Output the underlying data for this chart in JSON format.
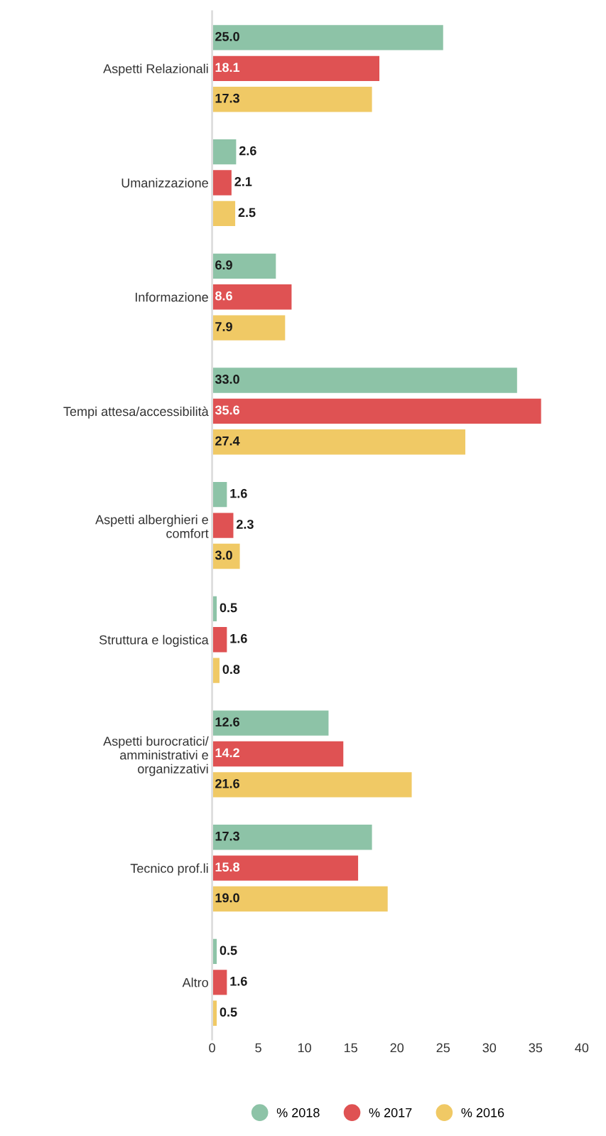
{
  "chart_data": {
    "type": "bar",
    "orientation": "horizontal",
    "categories": [
      "Aspetti Relazionali",
      "Umanizzazione",
      "Informazione",
      "Tempi attesa/accessibilità",
      "Aspetti alberghieri e\ncomfort",
      "Struttura e logistica",
      "Aspetti burocratici/\namministrativi e\norganizzativi",
      "Tecnico prof.li",
      "Altro"
    ],
    "series": [
      {
        "name": "% 2018",
        "color": "#8dc3a7",
        "values": [
          25.0,
          2.6,
          6.9,
          33.0,
          1.6,
          0.5,
          12.6,
          17.3,
          0.5
        ],
        "value_labels": [
          "25.0",
          "2.6",
          "6.9",
          "33.0",
          "1.6",
          "0.5",
          "12.6",
          "17.3",
          "0.5"
        ]
      },
      {
        "name": "% 2017",
        "color": "#df5253",
        "values": [
          18.1,
          2.1,
          8.6,
          35.6,
          2.3,
          1.6,
          14.2,
          15.8,
          1.6
        ],
        "value_labels": [
          "18.1",
          "2.1",
          "8.6",
          "35.6",
          "2.3",
          "1.6",
          "14.2",
          "15.8",
          "1.6"
        ]
      },
      {
        "name": "% 2016",
        "color": "#f0c965",
        "values": [
          17.3,
          2.5,
          7.9,
          27.4,
          3.0,
          0.8,
          21.6,
          19.0,
          0.5
        ],
        "value_labels": [
          "17.3",
          "2.5",
          "7.9",
          "27.4",
          "3.0",
          "0.8",
          "21.6",
          "19.0",
          "0.5"
        ]
      }
    ],
    "xlim": [
      0,
      40
    ],
    "xticks": [
      0,
      5,
      10,
      15,
      20,
      25,
      30,
      35,
      40
    ],
    "grid": false,
    "legend": "bottom"
  }
}
